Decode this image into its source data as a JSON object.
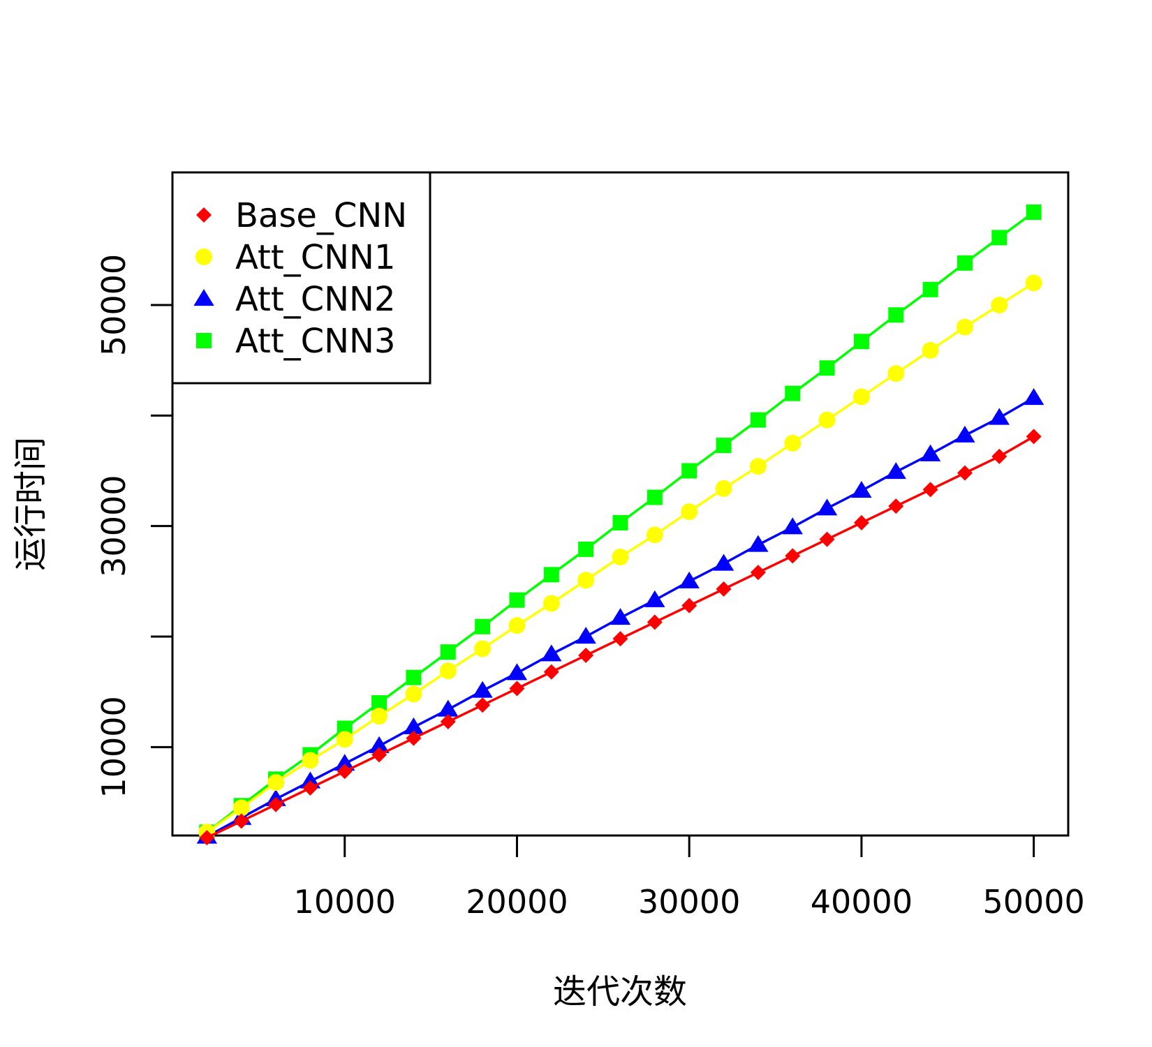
{
  "chart_data": {
    "type": "line",
    "title": "",
    "xlabel": "迭代次数",
    "ylabel": "运行时间",
    "xlim": [
      0,
      52000
    ],
    "ylim": [
      2000,
      62000
    ],
    "x_ticks": [
      10000,
      20000,
      30000,
      40000,
      50000
    ],
    "x_tick_labels": [
      "10000",
      "20000",
      "30000",
      "40000",
      "50000"
    ],
    "y_ticks": [
      10000,
      20000,
      30000,
      40000,
      50000
    ],
    "y_tick_labels": [
      "10000",
      "",
      "30000",
      "",
      "50000"
    ],
    "grid": false,
    "legend_position": "top-left",
    "x": [
      2000,
      4000,
      6000,
      8000,
      10000,
      12000,
      14000,
      16000,
      18000,
      20000,
      22000,
      24000,
      26000,
      28000,
      30000,
      32000,
      34000,
      36000,
      38000,
      40000,
      42000,
      44000,
      46000,
      48000,
      50000
    ],
    "series": [
      {
        "name": "Base_CNN",
        "color": "#ff0000",
        "marker": "diamond",
        "values": [
          1800,
          3300,
          4800,
          6300,
          7800,
          9300,
          10800,
          12300,
          13800,
          15300,
          16800,
          18300,
          19800,
          21300,
          22800,
          24300,
          25800,
          27300,
          28800,
          30300,
          31800,
          33300,
          34800,
          36300,
          38100
        ]
      },
      {
        "name": "Att_CNN1",
        "color": "#ffff00",
        "marker": "circle",
        "values": [
          2300,
          4500,
          6800,
          8800,
          10700,
          12800,
          14800,
          16900,
          18900,
          21000,
          23000,
          25100,
          27200,
          29200,
          31300,
          33400,
          35400,
          37500,
          39600,
          41700,
          43800,
          45900,
          48000,
          50000,
          52000
        ]
      },
      {
        "name": "Att_CNN2",
        "color": "#0000ff",
        "marker": "triangle",
        "values": [
          1900,
          3600,
          5300,
          6900,
          8500,
          10100,
          11800,
          13400,
          15100,
          16700,
          18400,
          20000,
          21700,
          23300,
          25000,
          26600,
          28300,
          29900,
          31600,
          33200,
          34900,
          36500,
          38200,
          39800,
          41600
        ]
      },
      {
        "name": "Att_CNN3",
        "color": "#00ff00",
        "marker": "square",
        "values": [
          2300,
          4700,
          7100,
          9300,
          11700,
          14000,
          16300,
          18600,
          20900,
          23300,
          25600,
          27900,
          30300,
          32600,
          35000,
          37300,
          39600,
          42000,
          44300,
          46700,
          49100,
          51400,
          53800,
          56100,
          58400
        ]
      }
    ]
  }
}
